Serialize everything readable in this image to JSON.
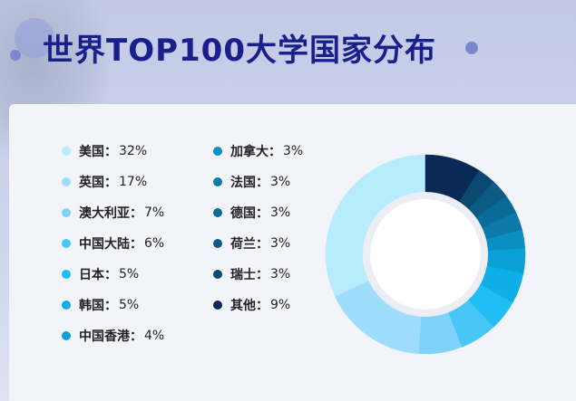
{
  "title": "世界TOP100大学国家分布",
  "chart_data": {
    "type": "pie",
    "variant": "donut",
    "title": "世界TOP100大学国家分布",
    "separator": "：",
    "unit": "%",
    "slices": [
      {
        "name": "美国",
        "value": 32,
        "color": "#b8ecfc"
      },
      {
        "name": "英国",
        "value": 17,
        "color": "#9edcfb"
      },
      {
        "name": "澳大利亚",
        "value": 7,
        "color": "#7ed3fb"
      },
      {
        "name": "中国大陆",
        "value": 6,
        "color": "#48c7f7"
      },
      {
        "name": "日本",
        "value": 5,
        "color": "#1fbff5"
      },
      {
        "name": "韩国",
        "value": 5,
        "color": "#0eaee6"
      },
      {
        "name": "中国香港",
        "value": 4,
        "color": "#0aa2d6"
      },
      {
        "name": "加拿大",
        "value": 3,
        "color": "#0a8fc2"
      },
      {
        "name": "法国",
        "value": 3,
        "color": "#0b7aa8"
      },
      {
        "name": "德国",
        "value": 3,
        "color": "#0a6b98"
      },
      {
        "name": "荷兰",
        "value": 3,
        "color": "#0c5b84"
      },
      {
        "name": "瑞士",
        "value": 3,
        "color": "#0b4a70"
      },
      {
        "name": "其他",
        "value": 9,
        "color": "#0a2a55"
      }
    ],
    "legend_placement": "left",
    "legend_columns": 2
  }
}
